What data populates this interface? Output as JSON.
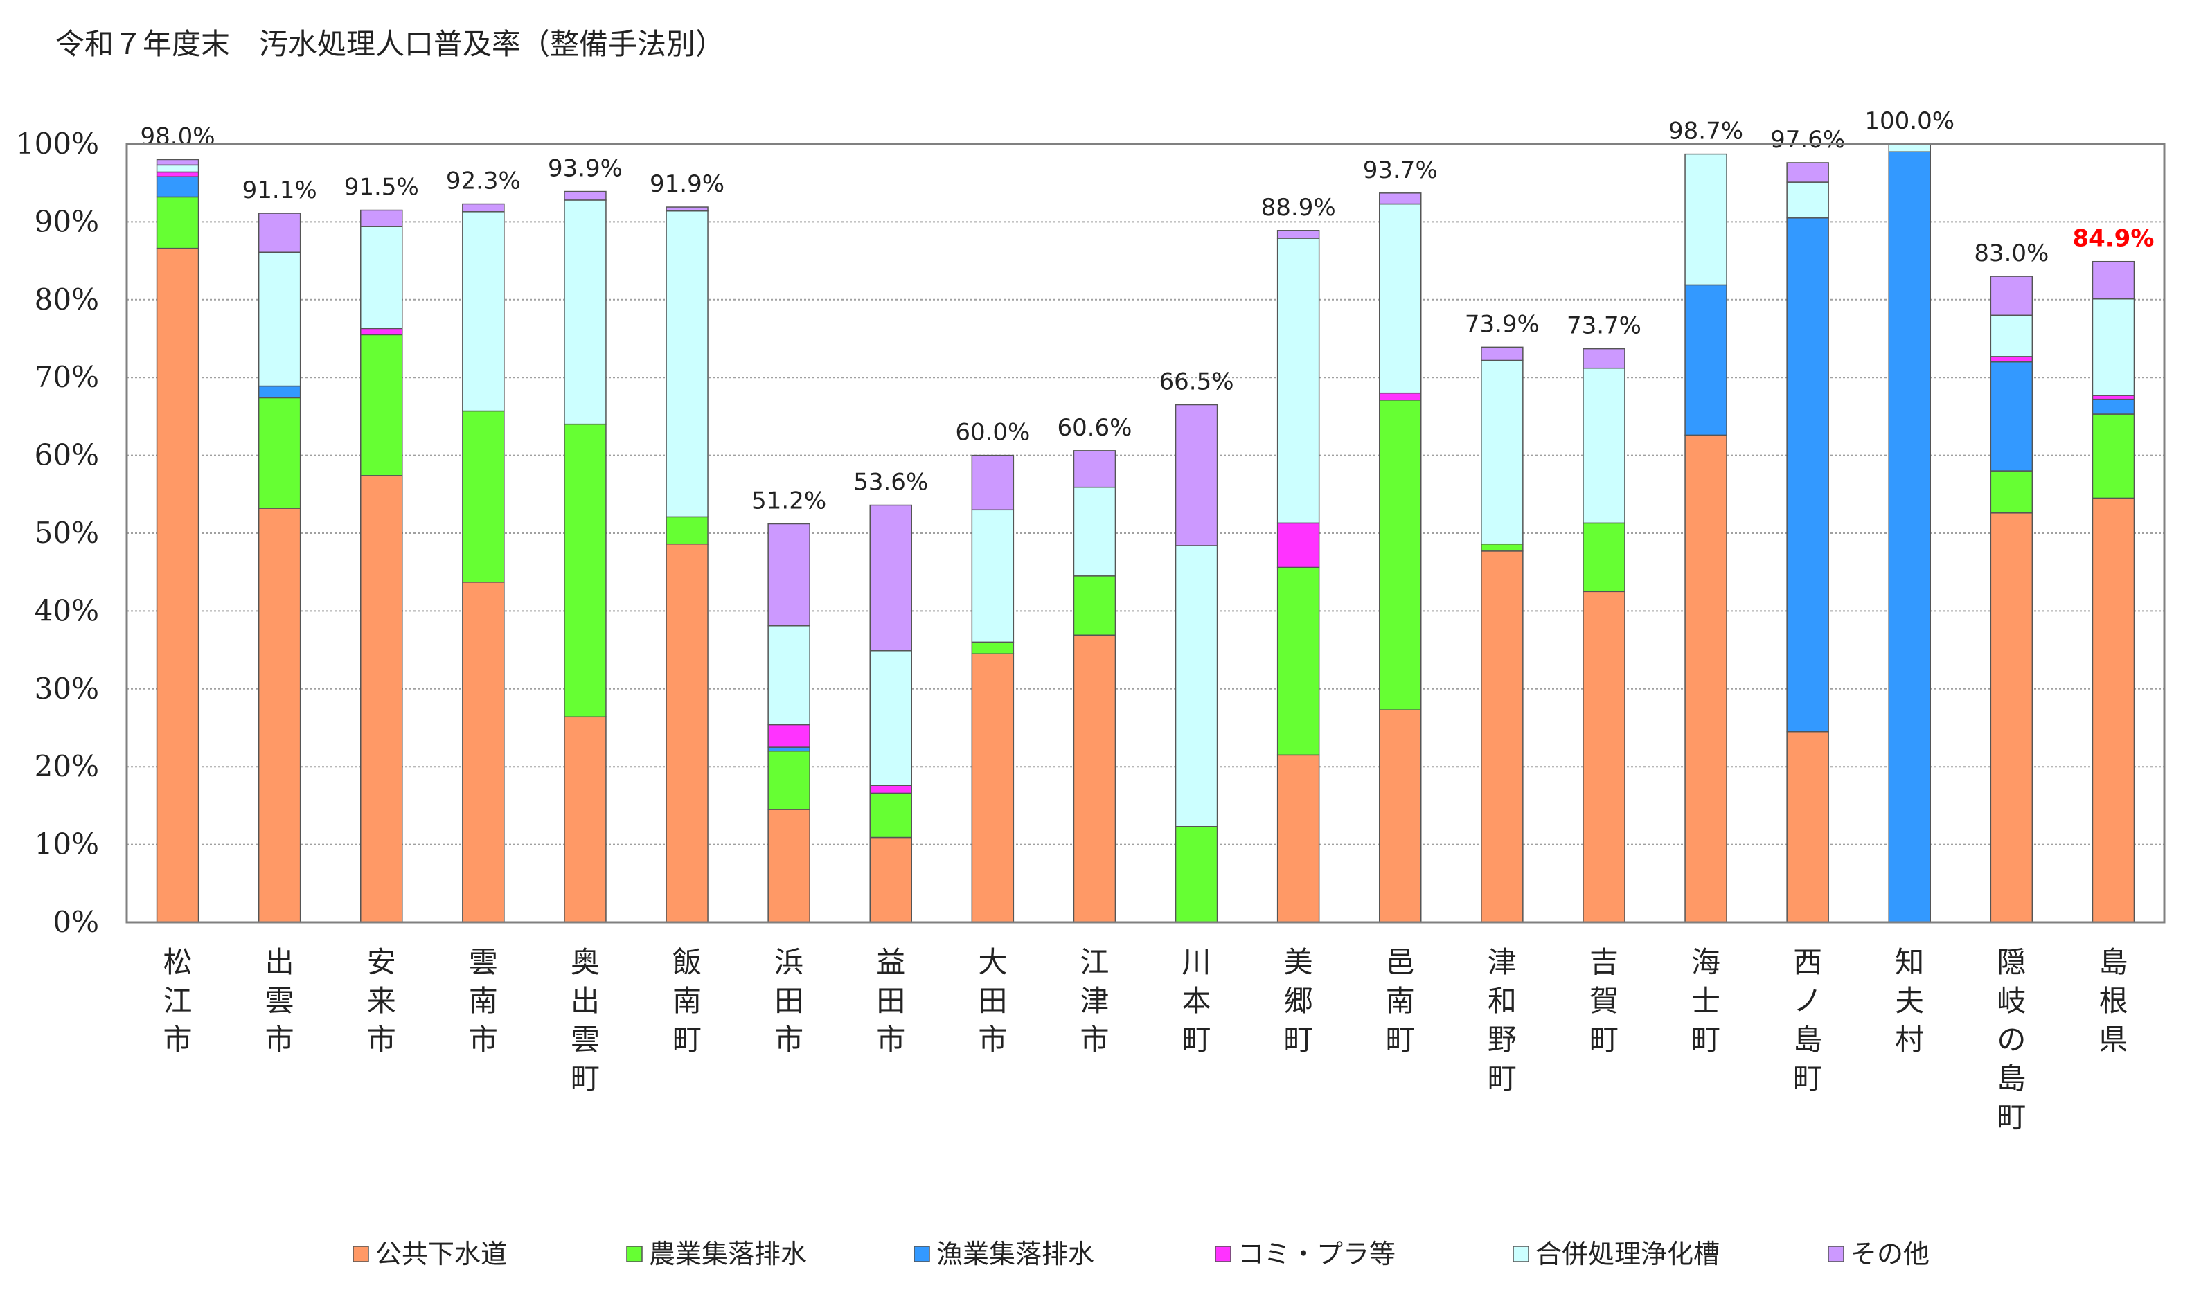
{
  "chart_data": {
    "type": "bar",
    "stacked": true,
    "title": "令和７年度末　汚水処理人口普及率（整備手法別）",
    "ylim": [
      0,
      100
    ],
    "yticks": [
      "0%",
      "10%",
      "20%",
      "30%",
      "40%",
      "50%",
      "60%",
      "70%",
      "80%",
      "90%",
      "100%"
    ],
    "grid": true,
    "legend_position": "bottom",
    "categories": [
      "松江市",
      "出雲市",
      "安来市",
      "雲南市",
      "奥出雲町",
      "飯南町",
      "浜田市",
      "益田市",
      "大田市",
      "江津市",
      "川本町",
      "美郷町",
      "邑南町",
      "津和野町",
      "吉賀町",
      "海士町",
      "西ノ島町",
      "知夫村",
      "隠岐の島町",
      "島根県"
    ],
    "totals": [
      "98.0%",
      "91.1%",
      "91.5%",
      "92.3%",
      "93.9%",
      "91.9%",
      "51.2%",
      "53.6%",
      "60.0%",
      "60.6%",
      "66.5%",
      "88.9%",
      "93.7%",
      "73.9%",
      "73.7%",
      "98.7%",
      "97.6%",
      "100.0%",
      "83.0%",
      "84.9%"
    ],
    "highlight_index": 19,
    "series": [
      {
        "name": "公共下水道",
        "color": "#ff9966",
        "values": [
          86.6,
          53.2,
          57.4,
          43.7,
          26.4,
          48.6,
          14.5,
          10.9,
          34.5,
          36.9,
          0.0,
          21.5,
          27.3,
          47.7,
          42.5,
          62.6,
          24.5,
          0.0,
          52.6,
          54.5
        ]
      },
      {
        "name": "農業集落排水",
        "color": "#66ff33",
        "values": [
          6.6,
          14.2,
          18.1,
          22.0,
          37.6,
          3.5,
          7.5,
          5.7,
          1.5,
          7.6,
          12.3,
          24.1,
          39.8,
          0.9,
          8.8,
          0.0,
          0.0,
          0.0,
          5.4,
          10.8
        ]
      },
      {
        "name": "漁業集落排水",
        "color": "#3399ff",
        "values": [
          2.6,
          1.5,
          0.0,
          0.0,
          0.0,
          0.0,
          0.5,
          0.0,
          0.0,
          0.0,
          0.0,
          0.0,
          0.0,
          0.0,
          0.0,
          19.3,
          66.0,
          99.0,
          14.0,
          1.9
        ]
      },
      {
        "name": "コミ・プラ等",
        "color": "#ff33ff",
        "values": [
          0.6,
          0.0,
          0.8,
          0.0,
          0.0,
          0.0,
          2.9,
          1.0,
          0.0,
          0.0,
          0.0,
          5.7,
          0.9,
          0.0,
          0.0,
          0.0,
          0.0,
          0.0,
          0.7,
          0.5
        ]
      },
      {
        "name": "合併処理浄化槽",
        "color": "#ccffff",
        "values": [
          0.9,
          17.2,
          13.1,
          25.6,
          28.8,
          39.3,
          12.7,
          17.3,
          17.0,
          11.4,
          36.1,
          36.6,
          24.3,
          23.6,
          19.9,
          16.8,
          4.6,
          1.0,
          5.3,
          12.4
        ]
      },
      {
        "name": "その他",
        "color": "#cc99ff",
        "values": [
          0.7,
          5.0,
          2.1,
          1.0,
          1.1,
          0.5,
          13.1,
          18.7,
          7.0,
          4.7,
          18.1,
          1.0,
          1.4,
          1.7,
          2.5,
          0.0,
          2.5,
          0.0,
          5.0,
          4.8
        ]
      }
    ]
  }
}
